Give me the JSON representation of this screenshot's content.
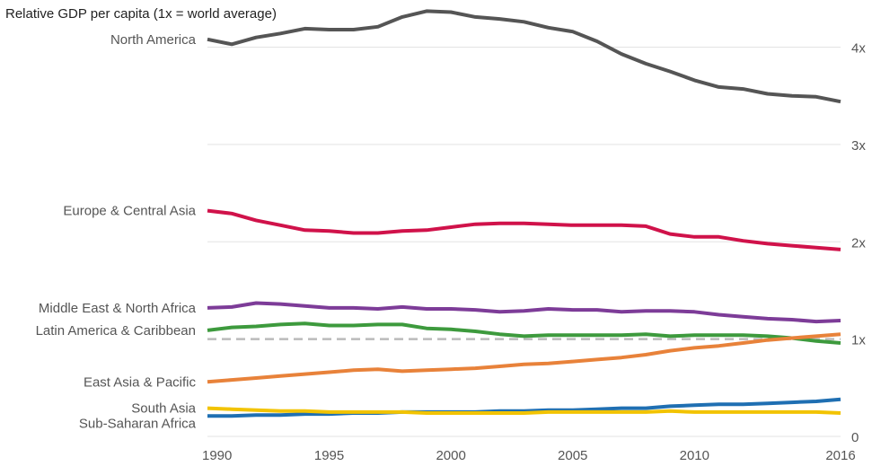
{
  "chart_data": {
    "type": "line",
    "title": "Relative GDP per capita (1x = world average)",
    "xlabel": "",
    "ylabel": "",
    "xlim": [
      1990,
      2016
    ],
    "ylim": [
      0,
      4.3
    ],
    "x_ticks": [
      "1990",
      "1995",
      "2000",
      "2005",
      "2010",
      "2016"
    ],
    "y_ticks": [
      {
        "value": 0,
        "label": "0"
      },
      {
        "value": 1,
        "label": "1x"
      },
      {
        "value": 2,
        "label": "2x"
      },
      {
        "value": 3,
        "label": "3x"
      },
      {
        "value": 4,
        "label": "4x"
      }
    ],
    "grid": "horizontal",
    "reference_line": {
      "value": 1,
      "style": "dashed",
      "color": "#bbbbbb"
    },
    "legend": "none (series labeled at left)",
    "x": [
      1990,
      1991,
      1992,
      1993,
      1994,
      1995,
      1996,
      1997,
      1998,
      1999,
      2000,
      2001,
      2002,
      2003,
      2004,
      2005,
      2006,
      2007,
      2008,
      2009,
      2010,
      2011,
      2012,
      2013,
      2014,
      2015,
      2016
    ],
    "series": [
      {
        "name": "North America",
        "color": "#555555",
        "values": [
          4.08,
          4.03,
          4.1,
          4.14,
          4.19,
          4.18,
          4.18,
          4.21,
          4.31,
          4.37,
          4.36,
          4.31,
          4.29,
          4.26,
          4.2,
          4.16,
          4.06,
          3.93,
          3.83,
          3.75,
          3.66,
          3.59,
          3.57,
          3.52,
          3.5,
          3.49,
          3.44
        ]
      },
      {
        "name": "Europe & Central Asia",
        "color": "#d0124a",
        "values": [
          2.32,
          2.29,
          2.22,
          2.17,
          2.12,
          2.11,
          2.09,
          2.09,
          2.11,
          2.12,
          2.15,
          2.18,
          2.19,
          2.19,
          2.18,
          2.17,
          2.17,
          2.17,
          2.16,
          2.08,
          2.05,
          2.05,
          2.01,
          1.98,
          1.96,
          1.94,
          1.92
        ]
      },
      {
        "name": "Middle East & North Africa",
        "color": "#7d3c98",
        "values": [
          1.32,
          1.33,
          1.37,
          1.36,
          1.34,
          1.32,
          1.32,
          1.31,
          1.33,
          1.31,
          1.31,
          1.3,
          1.28,
          1.29,
          1.31,
          1.3,
          1.3,
          1.28,
          1.29,
          1.29,
          1.28,
          1.25,
          1.23,
          1.21,
          1.2,
          1.18,
          1.19
        ]
      },
      {
        "name": "Latin America & Caribbean",
        "color": "#3d9a3d",
        "values": [
          1.09,
          1.12,
          1.13,
          1.15,
          1.16,
          1.14,
          1.14,
          1.15,
          1.15,
          1.11,
          1.1,
          1.08,
          1.05,
          1.03,
          1.04,
          1.04,
          1.04,
          1.04,
          1.05,
          1.03,
          1.04,
          1.04,
          1.04,
          1.03,
          1.01,
          0.98,
          0.96
        ]
      },
      {
        "name": "East Asia & Pacific",
        "color": "#e8823a",
        "values": [
          0.56,
          0.58,
          0.6,
          0.62,
          0.64,
          0.66,
          0.68,
          0.69,
          0.67,
          0.68,
          0.69,
          0.7,
          0.72,
          0.74,
          0.75,
          0.77,
          0.79,
          0.81,
          0.84,
          0.88,
          0.91,
          0.93,
          0.96,
          0.99,
          1.01,
          1.03,
          1.05
        ]
      },
      {
        "name": "Sub-Saharan Africa",
        "color": "#1f6fb2",
        "values": [
          0.21,
          0.21,
          0.22,
          0.22,
          0.23,
          0.23,
          0.24,
          0.24,
          0.25,
          0.25,
          0.25,
          0.25,
          0.26,
          0.26,
          0.27,
          0.27,
          0.28,
          0.29,
          0.29,
          0.31,
          0.32,
          0.33,
          0.33,
          0.34,
          0.35,
          0.36,
          0.38
        ]
      },
      {
        "name": "South Asia",
        "color": "#f2c300",
        "values": [
          0.29,
          0.28,
          0.27,
          0.26,
          0.26,
          0.25,
          0.25,
          0.25,
          0.25,
          0.24,
          0.24,
          0.24,
          0.24,
          0.24,
          0.25,
          0.25,
          0.25,
          0.25,
          0.25,
          0.26,
          0.25,
          0.25,
          0.25,
          0.25,
          0.25,
          0.25,
          0.24
        ]
      }
    ]
  }
}
